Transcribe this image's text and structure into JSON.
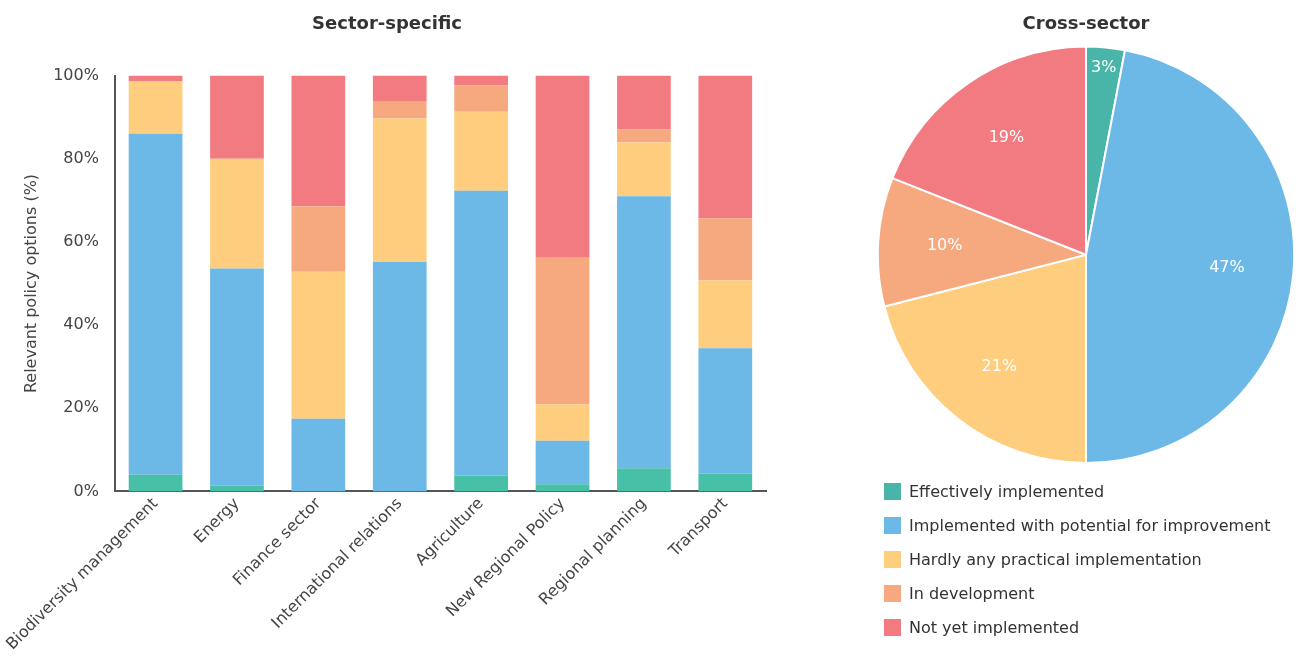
{
  "chart_data": [
    {
      "type": "bar",
      "title": "Sector-specific",
      "ylabel": "Relevant policy options (%)",
      "stacked": true,
      "categories": [
        "Biodiversity management",
        "Energy",
        "Finance sector",
        "International relations",
        "Agriculture",
        "New Regional Policy",
        "Regional planning",
        "Transport"
      ],
      "series": [
        {
          "color": "#48bfa7",
          "values": [
            4.0,
            1.4,
            0,
            0,
            3.8,
            1.7,
            5.6,
            4.3
          ]
        },
        {
          "color": "#6cb8e6",
          "values": [
            82.0,
            52.2,
            17.5,
            55.2,
            68.5,
            10.5,
            65.4,
            30.1
          ]
        },
        {
          "color": "#fecd7e",
          "values": [
            12.7,
            26.4,
            35.3,
            34.5,
            19.0,
            8.7,
            12.9,
            16.3
          ]
        },
        {
          "color": "#f6a97f",
          "values": [
            0,
            0,
            15.8,
            4.0,
            6.3,
            35.3,
            3.2,
            15.0
          ]
        },
        {
          "color": "#f27b82",
          "values": [
            1.3,
            20.0,
            31.4,
            6.3,
            2.4,
            43.8,
            12.9,
            34.3
          ]
        }
      ],
      "ylim": [
        0,
        100
      ],
      "yticks": [
        {
          "value": 0,
          "label": "0%"
        },
        {
          "value": 20,
          "label": "20%"
        },
        {
          "value": 40,
          "label": "40%"
        },
        {
          "value": 60,
          "label": "60%"
        },
        {
          "value": 80,
          "label": "80%"
        },
        {
          "value": 100,
          "label": "100%"
        }
      ],
      "grid": false,
      "legend": false
    },
    {
      "type": "pie",
      "title": "Cross-sector",
      "categories": [
        "Effectively implemented",
        "Implemented with potential for improvement",
        "Hardly any practical implementation",
        "In development",
        "Not yet implemented"
      ],
      "values": [
        3,
        47,
        21,
        10,
        19
      ],
      "colors": [
        "#48b5a8",
        "#6cb8e6",
        "#fecd7e",
        "#f6a97f",
        "#f27b82"
      ],
      "value_labels": [
        "3%",
        "47%",
        "21%",
        "10%",
        "19%"
      ],
      "legend": "bottom"
    }
  ]
}
